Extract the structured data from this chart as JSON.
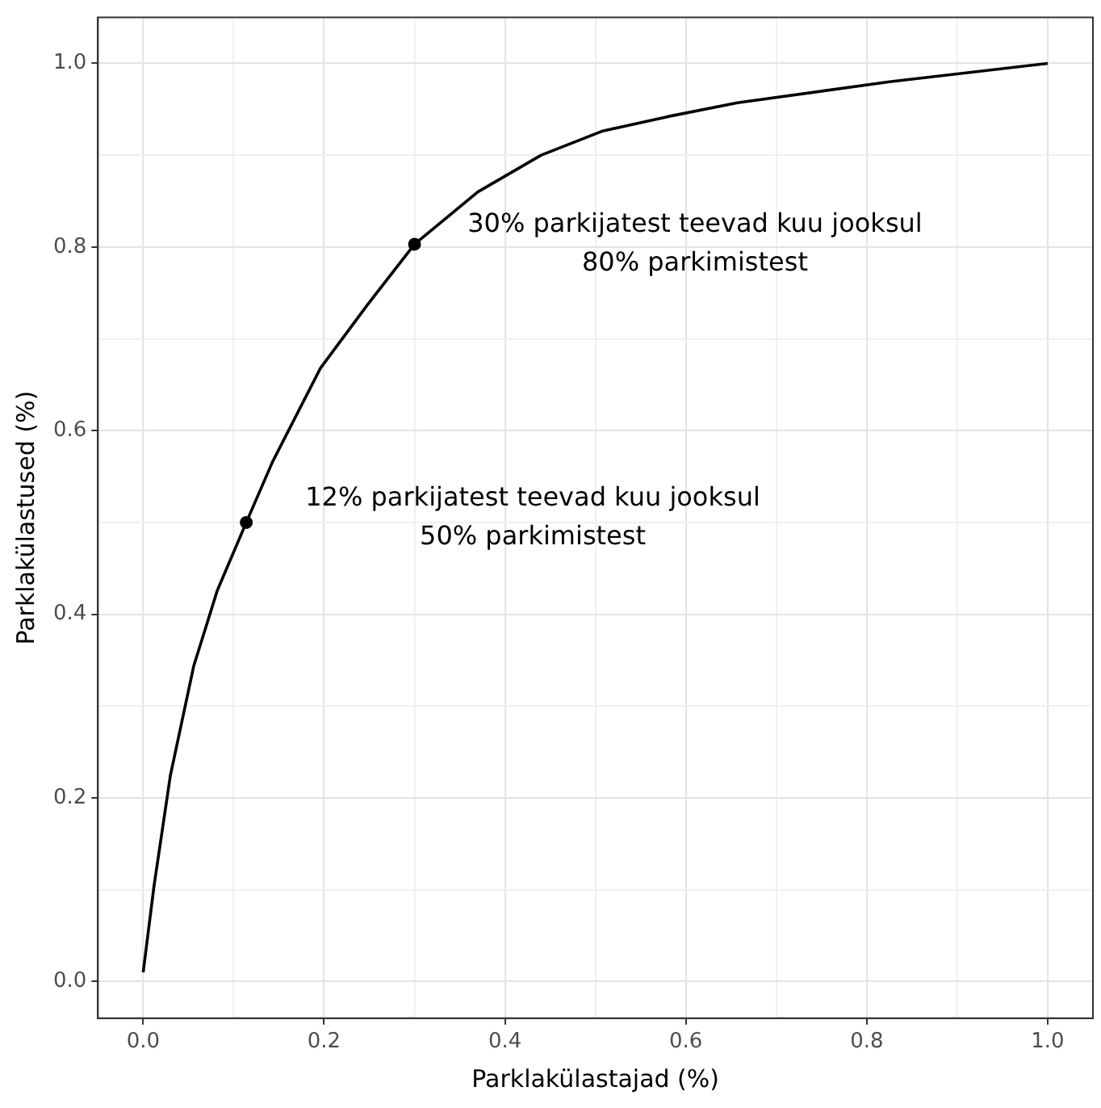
{
  "chart_data": {
    "type": "line",
    "xlabel": "Parklakülastajad (%)",
    "ylabel": "Parklakülastused (%)",
    "xlim": [
      -0.05,
      1.05
    ],
    "ylim": [
      -0.04,
      1.05
    ],
    "xticks": [
      {
        "value": 0,
        "label": "0.0"
      },
      {
        "value": 0.1,
        "label": null
      },
      0.2,
      {
        "value": 0.3,
        "label": null
      },
      0.4,
      {
        "value": 0.5,
        "label": null
      },
      0.6,
      {
        "value": 0.7,
        "label": null
      },
      0.8,
      {
        "value": 0.9,
        "label": null
      },
      {
        "value": 1,
        "label": "1.0"
      }
    ],
    "yticks": [
      {
        "value": 0,
        "label": "0.0"
      },
      {
        "value": 0.1,
        "label": null
      },
      0.2,
      {
        "value": 0.3,
        "label": null
      },
      0.4,
      {
        "value": 0.5,
        "label": null
      },
      0.6,
      {
        "value": 0.7,
        "label": null
      },
      0.8,
      {
        "value": 0.9,
        "label": null
      },
      {
        "value": 1,
        "label": "1.0"
      }
    ],
    "grid": true,
    "legend": false,
    "series": [
      {
        "color": "#000000",
        "marker": "none",
        "x": [
          0,
          0.012,
          0.03,
          0.056,
          0.082,
          0.114,
          0.143,
          0.196,
          0.248,
          0.3,
          0.37,
          0.44,
          0.507,
          0.58,
          0.657,
          0.825,
          1.0
        ],
        "values": [
          0.01,
          0.104,
          0.224,
          0.344,
          0.426,
          0.5,
          0.566,
          0.668,
          0.737,
          0.803,
          0.86,
          0.9,
          0.926,
          0.942,
          0.957,
          0.98,
          1.0
        ]
      },
      {
        "type": "scatter",
        "color": "#000000",
        "marker": "circle",
        "x": [
          0.114,
          0.3
        ],
        "values": [
          0.5,
          0.803
        ]
      }
    ],
    "annotations": [
      "30% parkijatest teevad kuu jooksul\n80% parkimistest",
      "12% parkijatest teevad kuu jooksul\n50% parkimistest"
    ]
  }
}
